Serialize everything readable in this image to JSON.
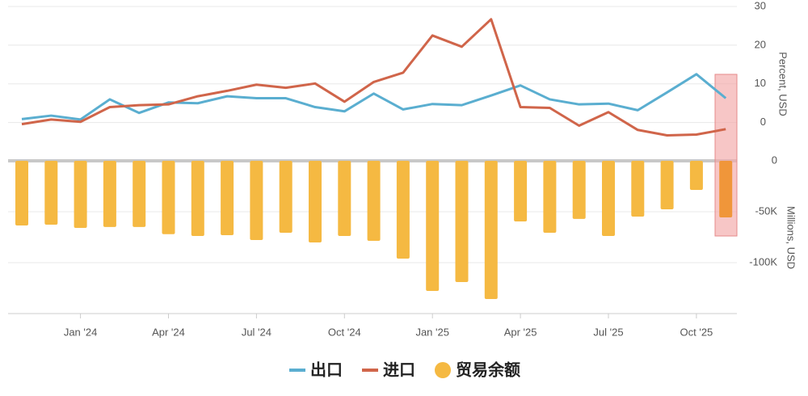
{
  "chart_data": [
    {
      "type": "line",
      "y_label": "Percent, USD",
      "ylim": [
        -8,
        30
      ],
      "yticks": [
        0,
        10,
        20,
        30
      ],
      "grid": true,
      "series": [
        {
          "name": "出口",
          "color": "#5aaed0",
          "values": [
            0.9,
            1.8,
            0.8,
            6,
            2.5,
            5.2,
            5,
            6.8,
            6.3,
            6.3,
            4,
            2.9,
            7.5,
            3.4,
            4.8,
            4.5,
            7,
            9.6,
            6,
            4.7,
            4.9,
            3.2,
            7.8,
            12.5,
            6.3
          ]
        },
        {
          "name": "进口",
          "color": "#d0654a",
          "values": [
            -0.4,
            0.8,
            0.2,
            4,
            4.5,
            4.7,
            6.8,
            8.2,
            9.8,
            9,
            10.1,
            5.4,
            10.5,
            12.9,
            22.5,
            19.6,
            26.7,
            4,
            3.8,
            -0.8,
            2.7,
            -1.9,
            -3.3,
            -3.1,
            -1.7
          ]
        }
      ]
    },
    {
      "type": "bar",
      "y_label": "Millions, USD",
      "categories": [
        null,
        null,
        "Jan '24",
        null,
        null,
        "Apr '24",
        null,
        null,
        "Jul '24",
        null,
        null,
        "Oct '24",
        null,
        null,
        "Jan '25",
        null,
        null,
        "Apr '25",
        null,
        null,
        "Jul '25",
        null,
        null,
        "Oct '25",
        null
      ],
      "ylim": [
        -150000,
        0
      ],
      "yticks": [
        0,
        {
          "value": -50000,
          "label": "-50K"
        },
        {
          "value": -100000,
          "label": "-100K"
        }
      ],
      "grid": true,
      "series": [
        {
          "name": "贸易余额",
          "color": "#f5b942",
          "highlight_color": "#f0963a",
          "values": [
            -63500,
            -62700,
            -65900,
            -65000,
            -65000,
            -72000,
            -73800,
            -73000,
            -77800,
            -70600,
            -80200,
            -73800,
            -78600,
            -96000,
            -127800,
            -119000,
            -135700,
            -59500,
            -70600,
            -57000,
            -73800,
            -54800,
            -47600,
            -28600,
            -55600
          ]
        }
      ]
    }
  ]
}
